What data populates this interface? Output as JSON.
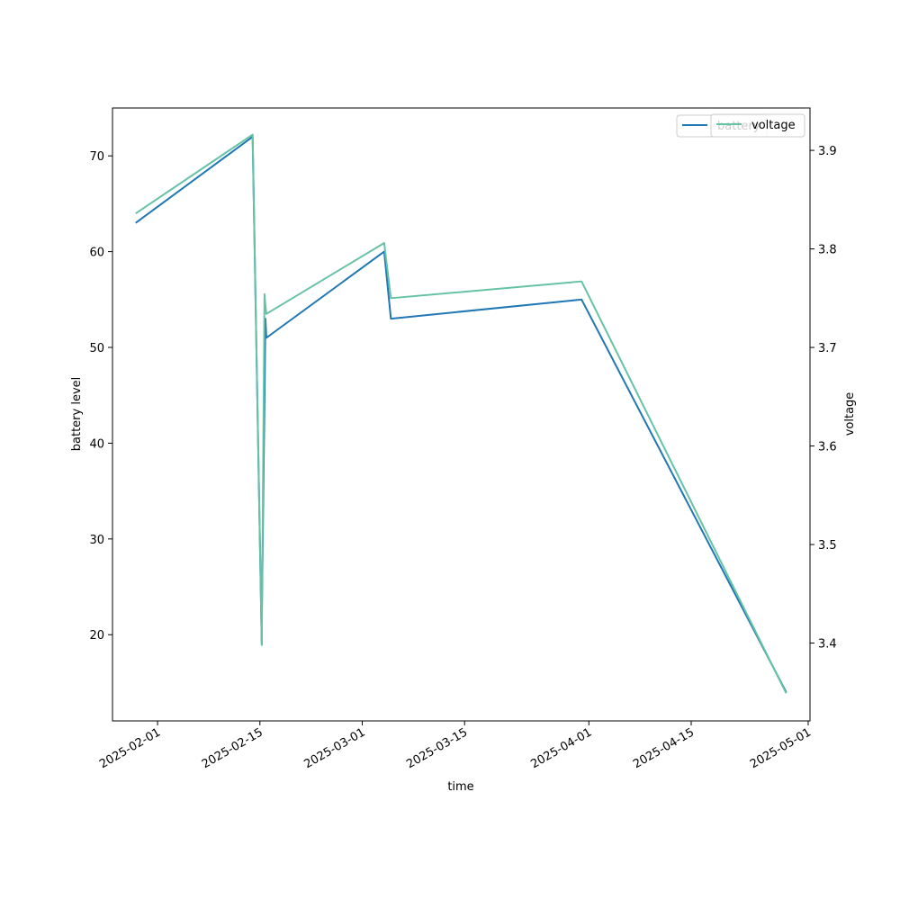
{
  "chart_data": {
    "type": "line",
    "xlabel": "time",
    "ylabel_left": "battery level",
    "ylabel_right": "voltage",
    "x_ticks": [
      "2025-02-01",
      "2025-02-15",
      "2025-03-01",
      "2025-03-15",
      "2025-04-01",
      "2025-04-15",
      "2025-05-01"
    ],
    "x_range": [
      "2025-01-25T20:00",
      "2025-05-01T06:00"
    ],
    "y_left_ticks": [
      20,
      30,
      40,
      50,
      60,
      70
    ],
    "y_left_range": [
      11.0,
      75.0
    ],
    "y_right_ticks": [
      3.4,
      3.5,
      3.6,
      3.7,
      3.8,
      3.9
    ],
    "y_right_range": [
      3.321,
      3.943
    ],
    "grid": false,
    "legend_placement": "top-right",
    "colors": {
      "battery": "#1f77b4",
      "voltage": "#66c2a5"
    },
    "series": [
      {
        "name": "battery",
        "axis": "left",
        "points": [
          [
            "2025-01-29T00:00",
            63.0
          ],
          [
            "2025-02-14T00:00",
            72.0
          ],
          [
            "2025-02-15T06:00",
            19.0
          ],
          [
            "2025-02-15T06:00",
            21.0
          ],
          [
            "2025-02-15T16:00",
            47.0
          ],
          [
            "2025-02-15T18:00",
            53.0
          ],
          [
            "2025-02-15T21:00",
            51.0
          ],
          [
            "2025-03-04T00:00",
            60.0
          ],
          [
            "2025-03-04T22:00",
            53.0
          ],
          [
            "2025-03-31T00:00",
            55.0
          ],
          [
            "2025-04-28T00:00",
            14.0
          ]
        ]
      },
      {
        "name": "voltage",
        "axis": "right",
        "points": [
          [
            "2025-01-29T00:00",
            3.836
          ],
          [
            "2025-02-14T00:00",
            3.916
          ],
          [
            "2025-02-15T06:00",
            3.398
          ],
          [
            "2025-02-15T15:00",
            3.754
          ],
          [
            "2025-02-15T18:00",
            3.743
          ],
          [
            "2025-02-15T21:00",
            3.734
          ],
          [
            "2025-03-04T00:00",
            3.806
          ],
          [
            "2025-03-04T22:00",
            3.75
          ],
          [
            "2025-03-31T00:00",
            3.767
          ],
          [
            "2025-04-28T00:00",
            3.349
          ]
        ]
      }
    ],
    "legend": [
      {
        "label": "battery",
        "series": "battery"
      },
      {
        "label": "voltage",
        "series": "voltage"
      }
    ]
  }
}
